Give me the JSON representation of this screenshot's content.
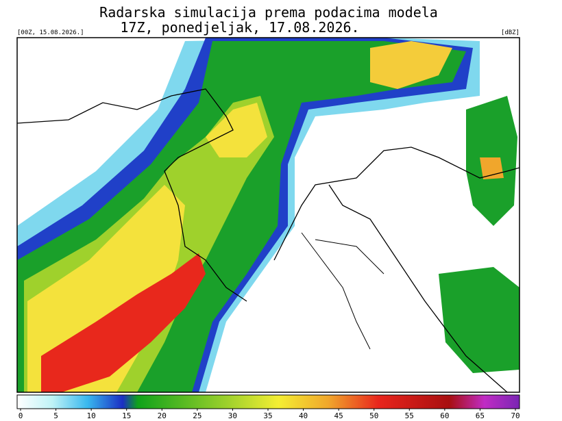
{
  "header": {
    "title_line1": "Radarska simulacija prema podacima modela",
    "title_line2": "17Z, ponedjeljak, 17.08.2026.",
    "run_label": "[00Z, 15.08.2026.]",
    "unit_label": "[dBZ]"
  },
  "colorbar": {
    "ticks": [
      0,
      5,
      10,
      15,
      20,
      25,
      30,
      35,
      40,
      45,
      50,
      55,
      60,
      65,
      70
    ]
  }
}
